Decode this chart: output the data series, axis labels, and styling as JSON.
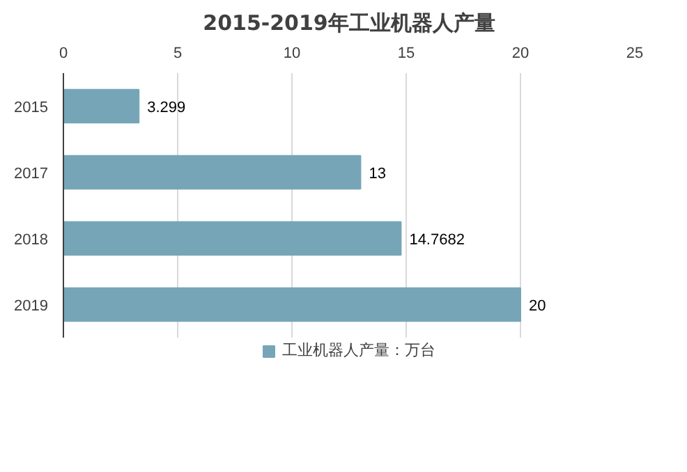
{
  "chart_data": {
    "type": "bar",
    "orientation": "horizontal",
    "title": "2015-2019年工业机器人产量",
    "categories": [
      "2015",
      "2017",
      "2018",
      "2019"
    ],
    "series": [
      {
        "name": "工业机器人产量：万台",
        "color": "#76a5b8",
        "values": [
          3.299,
          13,
          14.7682,
          20
        ]
      }
    ],
    "xlim": [
      0,
      25
    ],
    "xticks": [
      0,
      5,
      10,
      15,
      20,
      25
    ],
    "grid": "x",
    "legend": "bottom",
    "data_labels": true
  }
}
